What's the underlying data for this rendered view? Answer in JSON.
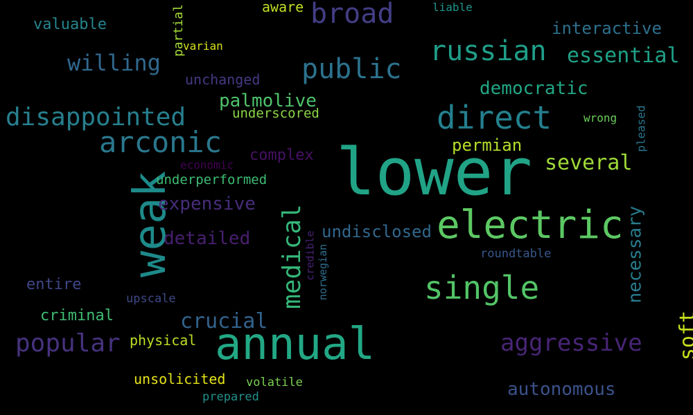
{
  "words": {
    "lower": "lower",
    "weak": "weak",
    "annual": "annual",
    "electric": "electric",
    "direct": "direct",
    "arconic": "arconic",
    "single": "single",
    "russian": "russian",
    "broad": "broad",
    "public": "public",
    "disappointed": "disappointed",
    "popular": "popular",
    "aggressive": "aggressive",
    "medical": "medical",
    "essential": "essential",
    "willing": "willing",
    "several": "several",
    "necessary": "necessary",
    "crucial": "crucial",
    "autonomous": "autonomous",
    "expensive": "expensive",
    "detailed": "detailed",
    "democratic": "democratic",
    "interactive": "interactive",
    "undisclosed": "undisclosed",
    "soft": "soft",
    "palmolive": "palmolive",
    "permian": "permian",
    "complex": "complex",
    "valuable": "valuable",
    "criminal": "criminal",
    "entire": "entire",
    "physical": "physical",
    "unsolicited": "unsolicited",
    "unchanged": "unchanged",
    "underperformed": "underperformed",
    "underscored": "underscored",
    "aware": "aware",
    "volatile": "volatile",
    "prepared": "prepared",
    "roundtable": "roundtable",
    "upscale": "upscale",
    "economic": "economic",
    "liable": "liable",
    "varian": "varian",
    "wrong": "wrong",
    "partial": "partial",
    "pleased": "pleased",
    "credible": "credible",
    "norwegian": "norwegian"
  },
  "colors": {
    "background": "#000000",
    "lower": "#21a386",
    "weak": "#1e8a8a",
    "annual": "#22a884",
    "electric": "#5cc863",
    "direct": "#24808e",
    "arconic": "#2a788e",
    "single": "#53c467",
    "russian": "#1f9e89",
    "broad": "#433e85",
    "public": "#2c728e",
    "disappointed": "#277f8e",
    "popular": "#46327e",
    "aggressive": "#482576",
    "medical": "#35b779",
    "essential": "#1fa187",
    "willing": "#31688e",
    "several": "#a0da39",
    "necessary": "#287c8e",
    "crucial": "#33638d",
    "autonomous": "#3b528b",
    "expensive": "#472d7b",
    "detailed": "#481f70",
    "democratic": "#22a785",
    "interactive": "#2d708e",
    "undisclosed": "#31688e",
    "soft": "#c8e020",
    "palmolive": "#4ec36b",
    "permian": "#b5de2b",
    "complex": "#471164",
    "valuable": "#25858e",
    "criminal": "#3fbc73",
    "entire": "#404688",
    "physical": "#bddf26",
    "unsolicited": "#e5e419",
    "unchanged": "#443a83",
    "underperformed": "#3dbc74",
    "underscored": "#8bd646",
    "aware": "#c2df23",
    "volatile": "#7ad151",
    "prepared": "#21918c",
    "roundtable": "#38588c",
    "upscale": "#3e4a89",
    "economic": "#440154",
    "liable": "#1f968b",
    "varian": "#d8e219",
    "wrong": "#6ccd5a",
    "partial": "#a5db36",
    "pleased": "#2a768e",
    "credible": "#482173",
    "norwegian": "#2e6e8e"
  }
}
